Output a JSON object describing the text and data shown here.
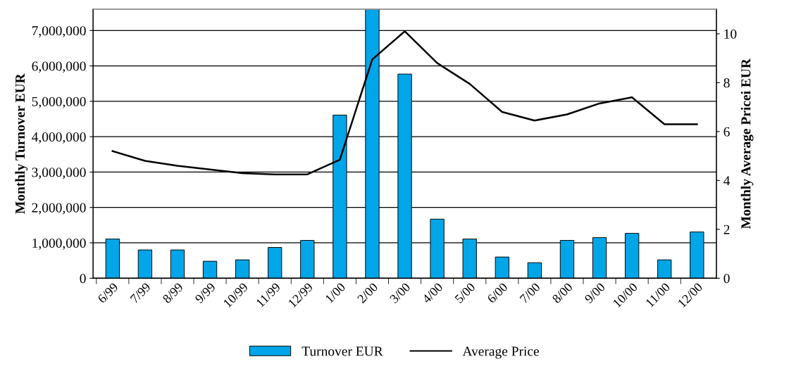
{
  "chart_data": {
    "type": "bar",
    "ylabel": "Monthly Turnover EUR",
    "y2label": "Monthly Average Pricei EUR",
    "categories": [
      "6/99",
      "7/99",
      "8/99",
      "9/99",
      "10/99",
      "11/99",
      "12/99",
      "1/00",
      "2/00",
      "3/00",
      "4/00",
      "5/00",
      "6/00",
      "7/00",
      "8/00",
      "9/00",
      "10/00",
      "11/00",
      "12/00"
    ],
    "series": [
      {
        "name": "Turnover EUR",
        "color": "#00a6e8",
        "values": [
          1110000,
          800000,
          800000,
          480000,
          520000,
          870000,
          1070000,
          4610000,
          7600000,
          5770000,
          1670000,
          1110000,
          600000,
          440000,
          1070000,
          1150000,
          1270000,
          520000,
          1310000
        ]
      },
      {
        "name": "Average Price",
        "type": "line",
        "axis": "y2",
        "color": "#000000",
        "values": [
          5.2,
          4.8,
          4.6,
          4.45,
          4.3,
          4.25,
          4.25,
          4.85,
          8.95,
          10.1,
          8.8,
          7.95,
          6.8,
          6.45,
          6.7,
          7.15,
          7.4,
          6.3,
          6.3
        ]
      }
    ],
    "ylim": [
      0,
      7600000
    ],
    "yticks": [
      {
        "value": 0,
        "label": "0"
      },
      {
        "value": 1000000,
        "label": "1,000,000"
      },
      {
        "value": 2000000,
        "label": "2,000,000"
      },
      {
        "value": 3000000,
        "label": "3,000,000"
      },
      {
        "value": 4000000,
        "label": "4,000,000"
      },
      {
        "value": 5000000,
        "label": "5,000,000"
      },
      {
        "value": 6000000,
        "label": "6,000,000"
      },
      {
        "value": 7000000,
        "label": "7,000,000"
      }
    ],
    "y2lim": [
      0,
      11
    ],
    "y2ticks": [
      0,
      2,
      4,
      6,
      8,
      10
    ],
    "grid": "y",
    "legend": "bottom"
  }
}
